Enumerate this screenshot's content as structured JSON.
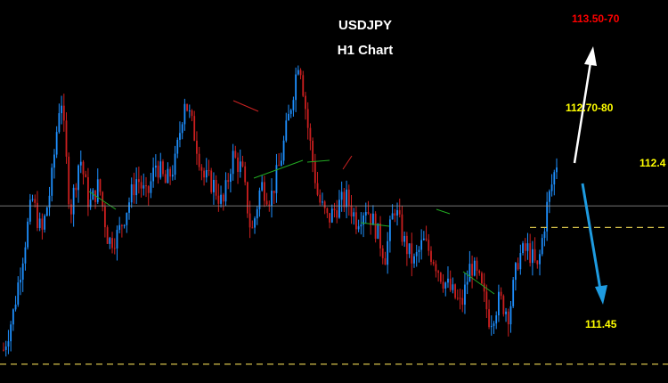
{
  "chart_data": {
    "type": "candlestick",
    "title": "USDJPY",
    "subtitle": "H1 Chart",
    "grid": false,
    "colors": {
      "background": "#000000",
      "bull": "#1e90ff",
      "bear": "#cc1f1f",
      "support_line": "#d4c04a",
      "title": "#ffffff",
      "level_label": "#ffff00",
      "target_label": "#ff0000",
      "up_arrow": "#ffffff",
      "down_arrow": "#1e9be0"
    },
    "price_range": [
      111.35,
      113.95
    ],
    "levels": [
      {
        "label": "113.50-70",
        "price": 113.6,
        "kind": "target-above",
        "color": "#ff0000"
      },
      {
        "label": "112.70-80",
        "price": 112.75,
        "kind": "resistance",
        "color": "#ffff00"
      },
      {
        "label": "112.4",
        "price": 112.4,
        "kind": "dashed-line",
        "color": "#ffff00"
      },
      {
        "label": "111.45",
        "price": 111.45,
        "kind": "dashed-line",
        "color": "#ffff00"
      }
    ],
    "reference_line_price": 112.55,
    "path": [
      111.55,
      111.8,
      112.2,
      112.6,
      112.35,
      112.7,
      113.35,
      112.5,
      112.9,
      112.55,
      112.7,
      112.3,
      112.35,
      112.55,
      112.75,
      112.6,
      112.85,
      112.7,
      112.85,
      113.3,
      113.05,
      112.75,
      112.7,
      112.55,
      112.9,
      112.8,
      112.35,
      112.7,
      112.6,
      112.85,
      113.2,
      113.6,
      113.05,
      112.6,
      112.45,
      112.55,
      112.6,
      112.45,
      112.55,
      112.4,
      112.2,
      112.55,
      112.3,
      112.15,
      112.3,
      112.2,
      112.05,
      111.95,
      111.85,
      112.15,
      112.0,
      111.75,
      111.9,
      111.8,
      112.2,
      112.25,
      112.1,
      112.55,
      112.85
    ]
  }
}
